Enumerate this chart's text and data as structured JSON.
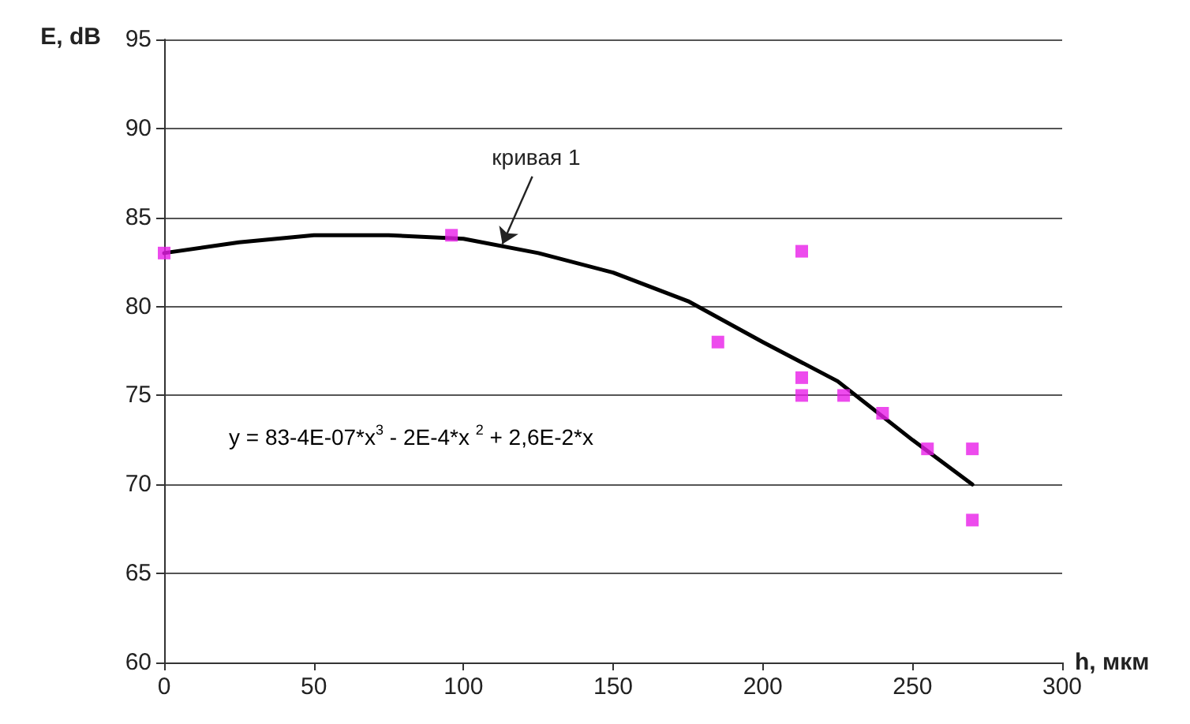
{
  "chart_data": {
    "type": "scatter",
    "xlabel": "h, мкм",
    "ylabel": "E, dB",
    "xlim": [
      0,
      300
    ],
    "xticks": [
      0,
      50,
      100,
      150,
      200,
      250,
      300
    ],
    "ylim": [
      60,
      95
    ],
    "yticks": [
      60,
      65,
      70,
      75,
      80,
      85,
      90,
      95
    ],
    "grid": "y",
    "marker": "square",
    "annotations": [
      {
        "text": "кривая 1",
        "x": 113,
        "y": 83.5
      },
      "y = 83-4E-07*x$^{3}$ - 2E-4*x $^{2}$ + 2,6E-2*x"
    ],
    "series": [
      {
        "type": "scatter",
        "color": "#e81ee8",
        "x": [
          0,
          96,
          185,
          213,
          213,
          213,
          227,
          240,
          255,
          270,
          270
        ],
        "values": [
          83,
          84,
          78,
          83.1,
          76,
          75,
          75,
          74,
          72,
          72,
          68
        ]
      },
      {
        "type": "line",
        "color": "#000000",
        "marker": "none",
        "line_style": "solid",
        "x": [
          0,
          25,
          50,
          75,
          100,
          125,
          150,
          175,
          200,
          225,
          250,
          270
        ],
        "values": [
          83,
          83.6,
          84,
          84,
          83.8,
          83,
          81.9,
          80.3,
          78,
          75.8,
          72.5,
          70
        ]
      }
    ]
  }
}
